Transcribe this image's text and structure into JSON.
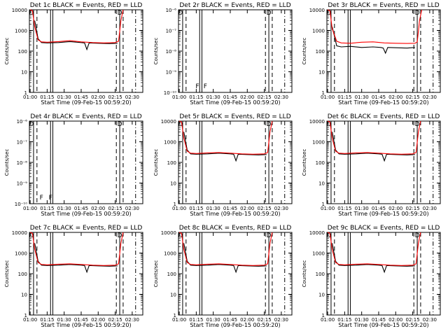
{
  "figure": {
    "ylabel": "Counts/sec",
    "xlabel": "Start Time (09-Feb-15 00:59:20)",
    "xticks": [
      "01:00",
      "01:15",
      "01:30",
      "01:45",
      "02:00",
      "02:15",
      "02:30"
    ],
    "legend_text": "BLACK = Events, RED = LLD",
    "colors": {
      "events": "#000000",
      "lld": "#ff0000",
      "axes": "#000000",
      "background": "#ffffff"
    },
    "panels_grid": {
      "rows": 3,
      "cols": 3
    }
  },
  "chart_data": [
    {
      "type": "line",
      "title": "Det 1c BLACK = Events, RED = LLD",
      "xlabel": "Start Time (09-Feb-15 00:59:20)",
      "ylabel": "Counts/sec",
      "x_range": [
        "00:59:20",
        "02:39:20"
      ],
      "yscale": "log",
      "ylim": [
        1,
        10000
      ],
      "yticks": [
        "1",
        "10",
        "100",
        "1000",
        "10000"
      ],
      "vlines_solid": [
        "01:03",
        "01:18",
        "01:20",
        "02:19"
      ],
      "vlines_dashed": [
        "01:06",
        "02:16",
        "02:22"
      ],
      "vlines_dashdot": [
        "02:33"
      ],
      "markers": [
        {
          "x": "01:01",
          "label": "D"
        },
        {
          "x": "02:19",
          "label": "D"
        }
      ],
      "series": [
        {
          "name": "Events",
          "x": [
            "01:04",
            "01:07",
            "01:10",
            "01:15",
            "01:25",
            "01:35",
            "01:45",
            "01:48",
            "01:50",
            "01:52",
            "02:00",
            "02:10",
            "02:17"
          ],
          "values": [
            3000,
            400,
            260,
            250,
            260,
            290,
            260,
            250,
            120,
            250,
            240,
            230,
            240
          ]
        },
        {
          "name": "LLD",
          "x": [
            "01:00",
            "01:02",
            "01:04",
            "01:07",
            "01:10",
            "01:15",
            "01:25",
            "01:35",
            "01:45",
            "01:55",
            "02:05",
            "02:15",
            "02:18",
            "02:20",
            "02:22"
          ],
          "values": [
            10000,
            9000,
            1500,
            350,
            280,
            270,
            290,
            320,
            280,
            260,
            250,
            260,
            300,
            3000,
            10000
          ]
        }
      ]
    },
    {
      "type": "line",
      "title": "Det 2r BLACK = Events, RED = LLD",
      "xlabel": "Start Time (09-Feb-15 00:59:20)",
      "ylabel": "Counts/sec",
      "x_range": [
        "00:59:20",
        "02:39:20"
      ],
      "yscale": "log",
      "ylim": [
        1e-10,
        1e-06
      ],
      "yticks": [
        "10⁻¹⁰",
        "10⁻⁹",
        "10⁻⁸",
        "10⁻⁷",
        "10⁻⁶"
      ],
      "vlines_solid": [
        "01:03",
        "01:18",
        "01:20",
        "02:19"
      ],
      "vlines_dashed": [
        "01:06",
        "02:16",
        "02:22"
      ],
      "vlines_dashdot": [
        "02:33"
      ],
      "markers": [
        {
          "x": "01:01",
          "label": "D"
        },
        {
          "x": "01:16",
          "label": "F"
        },
        {
          "x": "01:23",
          "label": "F"
        },
        {
          "x": "02:19",
          "label": "D"
        }
      ],
      "series": []
    },
    {
      "type": "line",
      "title": "Det 3r BLACK = Events, RED = LLD",
      "xlabel": "Start Time (09-Feb-15 00:59:20)",
      "ylabel": "Counts/sec",
      "x_range": [
        "00:59:20",
        "02:39:20"
      ],
      "yscale": "log",
      "ylim": [
        1,
        10000
      ],
      "yticks": [
        "1",
        "10",
        "100",
        "1000",
        "10000"
      ],
      "vlines_solid": [
        "01:03",
        "01:18",
        "01:20",
        "02:19"
      ],
      "vlines_dashed": [
        "01:06",
        "02:16",
        "02:22"
      ],
      "vlines_dashdot": [
        "02:33"
      ],
      "markers": [
        {
          "x": "01:01",
          "label": "D"
        },
        {
          "x": "02:19",
          "label": "D"
        }
      ],
      "series": [
        {
          "name": "Events",
          "x": [
            "01:04",
            "01:08",
            "01:12",
            "01:20",
            "01:30",
            "01:40",
            "01:47",
            "01:49",
            "01:51",
            "01:53",
            "02:00",
            "02:10",
            "02:17"
          ],
          "values": [
            1500,
            180,
            160,
            170,
            150,
            160,
            150,
            140,
            80,
            150,
            145,
            140,
            150
          ]
        },
        {
          "name": "LLD",
          "x": [
            "01:00",
            "01:02",
            "01:04",
            "01:08",
            "01:12",
            "01:20",
            "01:30",
            "01:40",
            "01:50",
            "02:00",
            "02:10",
            "02:17",
            "02:19",
            "02:21",
            "02:23"
          ],
          "values": [
            10000,
            9000,
            1200,
            300,
            250,
            240,
            270,
            280,
            250,
            240,
            235,
            240,
            280,
            3000,
            10000
          ]
        }
      ]
    },
    {
      "type": "line",
      "title": "Det 4r BLACK = Events, RED = LLD",
      "xlabel": "Start Time (09-Feb-15 00:59:20)",
      "ylabel": "Counts/sec",
      "x_range": [
        "00:59:20",
        "02:39:20"
      ],
      "yscale": "log",
      "ylim": [
        1e-10,
        1e-06
      ],
      "yticks": [
        "10⁻¹⁰",
        "10⁻⁹",
        "10⁻⁸",
        "10⁻⁷",
        "10⁻⁶"
      ],
      "vlines_solid": [
        "01:03",
        "01:18",
        "01:20",
        "02:19"
      ],
      "vlines_dashed": [
        "01:06",
        "02:16",
        "02:22"
      ],
      "vlines_dashdot": [
        "02:33"
      ],
      "markers": [
        {
          "x": "01:01",
          "label": "D"
        },
        {
          "x": "01:10",
          "label": "F"
        },
        {
          "x": "01:18",
          "label": "F"
        },
        {
          "x": "02:19",
          "label": "D"
        }
      ],
      "series": []
    },
    {
      "type": "line",
      "title": "Det 5r BLACK = Events, RED = LLD",
      "xlabel": "Start Time (09-Feb-15 00:59:20)",
      "ylabel": "Counts/sec",
      "x_range": [
        "00:59:20",
        "02:39:20"
      ],
      "yscale": "log",
      "ylim": [
        1,
        10000
      ],
      "yticks": [
        "1",
        "10",
        "100",
        "1000",
        "10000"
      ],
      "vlines_solid": [
        "01:03",
        "01:18",
        "01:20",
        "02:19"
      ],
      "vlines_dashed": [
        "01:06",
        "02:16",
        "02:22"
      ],
      "vlines_dashdot": [
        "02:33"
      ],
      "markers": [
        {
          "x": "01:01",
          "label": "D"
        },
        {
          "x": "02:19",
          "label": "D"
        }
      ],
      "series": [
        {
          "name": "Events",
          "x": [
            "01:04",
            "01:07",
            "01:10",
            "01:15",
            "01:25",
            "01:35",
            "01:45",
            "01:48",
            "01:50",
            "01:52",
            "02:00",
            "02:10",
            "02:17"
          ],
          "values": [
            3000,
            400,
            260,
            250,
            260,
            280,
            260,
            250,
            120,
            250,
            240,
            230,
            240
          ]
        },
        {
          "name": "LLD",
          "x": [
            "01:00",
            "01:02",
            "01:04",
            "01:07",
            "01:10",
            "01:15",
            "01:25",
            "01:35",
            "01:45",
            "01:55",
            "02:05",
            "02:15",
            "02:18",
            "02:20",
            "02:22"
          ],
          "values": [
            10000,
            9000,
            1500,
            350,
            280,
            270,
            290,
            300,
            280,
            260,
            250,
            260,
            300,
            3000,
            10000
          ]
        }
      ]
    },
    {
      "type": "line",
      "title": "Det 6c BLACK = Events, RED = LLD",
      "xlabel": "Start Time (09-Feb-15 00:59:20)",
      "ylabel": "Counts/sec",
      "x_range": [
        "00:59:20",
        "02:39:20"
      ],
      "yscale": "log",
      "ylim": [
        1,
        10000
      ],
      "yticks": [
        "1",
        "10",
        "100",
        "1000",
        "10000"
      ],
      "vlines_solid": [
        "01:03",
        "01:18",
        "01:20",
        "02:19"
      ],
      "vlines_dashed": [
        "01:06",
        "02:16",
        "02:22"
      ],
      "vlines_dashdot": [
        "02:33"
      ],
      "markers": [
        {
          "x": "01:01",
          "label": "D"
        },
        {
          "x": "02:19",
          "label": "D"
        }
      ],
      "series": [
        {
          "name": "Events",
          "x": [
            "01:04",
            "01:07",
            "01:10",
            "01:15",
            "01:25",
            "01:35",
            "01:45",
            "01:48",
            "01:50",
            "01:52",
            "02:00",
            "02:10",
            "02:17"
          ],
          "values": [
            3000,
            400,
            260,
            250,
            260,
            280,
            260,
            250,
            120,
            250,
            240,
            230,
            240
          ]
        },
        {
          "name": "LLD",
          "x": [
            "01:00",
            "01:02",
            "01:04",
            "01:07",
            "01:10",
            "01:15",
            "01:25",
            "01:35",
            "01:45",
            "01:55",
            "02:05",
            "02:15",
            "02:18",
            "02:20",
            "02:22"
          ],
          "values": [
            10000,
            9000,
            1500,
            350,
            280,
            270,
            290,
            300,
            280,
            260,
            250,
            260,
            300,
            3000,
            10000
          ]
        }
      ]
    },
    {
      "type": "line",
      "title": "Det 7c BLACK = Events, RED = LLD",
      "xlabel": "Start Time (09-Feb-15 00:59:20)",
      "ylabel": "Counts/sec",
      "x_range": [
        "00:59:20",
        "02:39:20"
      ],
      "yscale": "log",
      "ylim": [
        1,
        10000
      ],
      "yticks": [
        "1",
        "10",
        "100",
        "1000",
        "10000"
      ],
      "vlines_solid": [
        "01:03",
        "01:18",
        "01:20",
        "02:19"
      ],
      "vlines_dashed": [
        "01:06",
        "02:16",
        "02:22"
      ],
      "vlines_dashdot": [
        "02:33"
      ],
      "markers": [
        {
          "x": "01:01",
          "label": "D"
        },
        {
          "x": "02:19",
          "label": "D"
        }
      ],
      "series": [
        {
          "name": "Events",
          "x": [
            "01:04",
            "01:07",
            "01:10",
            "01:15",
            "01:25",
            "01:35",
            "01:45",
            "01:48",
            "01:50",
            "01:52",
            "02:00",
            "02:10",
            "02:17"
          ],
          "values": [
            3000,
            400,
            260,
            250,
            260,
            280,
            260,
            250,
            120,
            250,
            240,
            230,
            240
          ]
        },
        {
          "name": "LLD",
          "x": [
            "01:00",
            "01:02",
            "01:04",
            "01:07",
            "01:10",
            "01:15",
            "01:25",
            "01:35",
            "01:45",
            "01:55",
            "02:05",
            "02:15",
            "02:18",
            "02:20",
            "02:22"
          ],
          "values": [
            10000,
            9000,
            1500,
            350,
            280,
            270,
            290,
            300,
            280,
            260,
            250,
            260,
            300,
            3000,
            10000
          ]
        }
      ]
    },
    {
      "type": "line",
      "title": "Det 8c BLACK = Events, RED = LLD",
      "xlabel": "Start Time (09-Feb-15 00:59:20)",
      "ylabel": "Counts/sec",
      "x_range": [
        "00:59:20",
        "02:39:20"
      ],
      "yscale": "log",
      "ylim": [
        1,
        10000
      ],
      "yticks": [
        "1",
        "10",
        "100",
        "1000",
        "10000"
      ],
      "vlines_solid": [
        "01:03",
        "01:18",
        "01:20",
        "02:19"
      ],
      "vlines_dashed": [
        "01:06",
        "02:16",
        "02:22"
      ],
      "vlines_dashdot": [
        "02:33"
      ],
      "markers": [
        {
          "x": "01:01",
          "label": "D"
        },
        {
          "x": "02:19",
          "label": "D"
        }
      ],
      "series": [
        {
          "name": "Events",
          "x": [
            "01:04",
            "01:07",
            "01:10",
            "01:15",
            "01:25",
            "01:35",
            "01:45",
            "01:48",
            "01:50",
            "01:52",
            "02:00",
            "02:10",
            "02:17"
          ],
          "values": [
            3000,
            400,
            260,
            250,
            260,
            280,
            260,
            250,
            120,
            250,
            240,
            230,
            240
          ]
        },
        {
          "name": "LLD",
          "x": [
            "01:00",
            "01:02",
            "01:04",
            "01:07",
            "01:10",
            "01:15",
            "01:25",
            "01:35",
            "01:45",
            "01:55",
            "02:05",
            "02:15",
            "02:18",
            "02:20",
            "02:22"
          ],
          "values": [
            10000,
            9000,
            1500,
            350,
            280,
            270,
            290,
            300,
            280,
            260,
            250,
            260,
            300,
            3000,
            10000
          ]
        }
      ]
    },
    {
      "type": "line",
      "title": "Det 9c BLACK = Events, RED = LLD",
      "xlabel": "Start Time (09-Feb-15 00:59:20)",
      "ylabel": "Counts/sec",
      "x_range": [
        "00:59:20",
        "02:39:20"
      ],
      "yscale": "log",
      "ylim": [
        1,
        10000
      ],
      "yticks": [
        "1",
        "10",
        "100",
        "1000",
        "10000"
      ],
      "vlines_solid": [
        "01:03",
        "01:18",
        "01:20",
        "02:19"
      ],
      "vlines_dashed": [
        "01:06",
        "02:16",
        "02:22"
      ],
      "vlines_dashdot": [
        "02:33"
      ],
      "markers": [
        {
          "x": "01:01",
          "label": "D"
        },
        {
          "x": "02:19",
          "label": "D"
        }
      ],
      "series": [
        {
          "name": "Events",
          "x": [
            "01:04",
            "01:07",
            "01:10",
            "01:15",
            "01:25",
            "01:35",
            "01:45",
            "01:48",
            "01:50",
            "01:52",
            "02:00",
            "02:10",
            "02:17"
          ],
          "values": [
            3000,
            400,
            260,
            250,
            260,
            280,
            260,
            250,
            120,
            250,
            240,
            230,
            240
          ]
        },
        {
          "name": "LLD",
          "x": [
            "01:00",
            "01:02",
            "01:04",
            "01:07",
            "01:10",
            "01:15",
            "01:25",
            "01:35",
            "01:45",
            "01:55",
            "02:05",
            "02:15",
            "02:18",
            "02:20",
            "02:22"
          ],
          "values": [
            10000,
            9000,
            1500,
            350,
            280,
            270,
            290,
            300,
            280,
            260,
            250,
            260,
            300,
            3000,
            10000
          ]
        }
      ]
    }
  ]
}
